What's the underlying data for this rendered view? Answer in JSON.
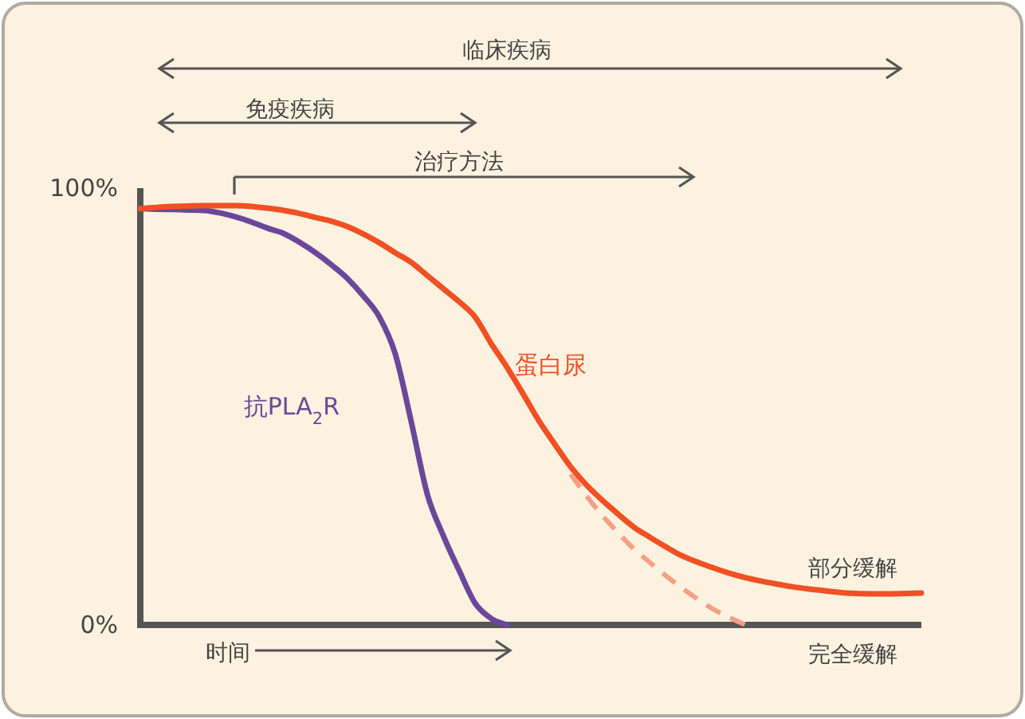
{
  "chart_data": {
    "type": "line",
    "ylim": [
      0,
      100
    ],
    "yticks": [
      {
        "value": 0,
        "label": "0%"
      },
      {
        "value": 100,
        "label": "100%"
      }
    ],
    "tick_labels": "y",
    "grid": false,
    "marker": "none",
    "categories": [
      null,
      null,
      null,
      null,
      null,
      null,
      null,
      null,
      null,
      null,
      null,
      null,
      null,
      null,
      null,
      null,
      null,
      null,
      null,
      null,
      null,
      null,
      null,
      null,
      null,
      null,
      null,
      null,
      null,
      null,
      null,
      null,
      null,
      null,
      null,
      null,
      null,
      null,
      null,
      null,
      null,
      null,
      null,
      null,
      null,
      null,
      null,
      null,
      null,
      null
    ],
    "series": [
      {
        "name": "抗PLA$_{2}$R",
        "color": "#6b479b",
        "line_style": "solid",
        "values": [
          95.3,
          95.2,
          95.1,
          95.0,
          94.9,
          94.3,
          93.4,
          92.2,
          90.8,
          89.6,
          87.6,
          85.2,
          82.4,
          79.3,
          75.3,
          70.5,
          62.0,
          46.5,
          30.0,
          20.5,
          12.5,
          5.0,
          1.5,
          0,
          null,
          null,
          null,
          null,
          null,
          null,
          null,
          null,
          null,
          null,
          null,
          null,
          null,
          null,
          null,
          null,
          null,
          null,
          null,
          null,
          null,
          null,
          null,
          null,
          null,
          null
        ]
      },
      {
        "name": "蛋白尿",
        "color": "#f05023",
        "line_style": "solid",
        "values": [
          95.3,
          95.6,
          95.8,
          95.9,
          96.0,
          96.0,
          96.0,
          95.8,
          95.4,
          94.9,
          94.2,
          93.3,
          92.4,
          91.2,
          89.5,
          87.5,
          85.2,
          83.0,
          80.0,
          77.0,
          74.0,
          70.5,
          64.5,
          59.0,
          53.0,
          46.8,
          41.4,
          36.2,
          32.0,
          28.5,
          25.3,
          22.3,
          20.0,
          17.8,
          15.8,
          14.3,
          13.0,
          11.8,
          10.8,
          10.0,
          9.3,
          8.7,
          8.2,
          7.8,
          7.4,
          7.2,
          7.1,
          7.1,
          7.2,
          7.3
        ]
      },
      {
        "color": "#f4a083",
        "line_style": "dashed",
        "values": [
          null,
          null,
          null,
          null,
          null,
          null,
          null,
          null,
          null,
          null,
          null,
          null,
          null,
          null,
          null,
          null,
          null,
          null,
          null,
          null,
          null,
          null,
          null,
          null,
          null,
          null,
          null,
          34.5,
          29.5,
          25.0,
          21.0,
          17.3,
          14.2,
          11.2,
          8.4,
          5.8,
          3.5,
          1.6,
          0,
          null,
          null,
          null,
          null,
          null,
          null,
          null,
          null,
          null,
          null,
          null
        ]
      }
    ],
    "annotations": [
      "临床疾病",
      "免疫疾病",
      "治疗方法",
      "时间",
      "部分缓解",
      "完全缓解"
    ]
  }
}
